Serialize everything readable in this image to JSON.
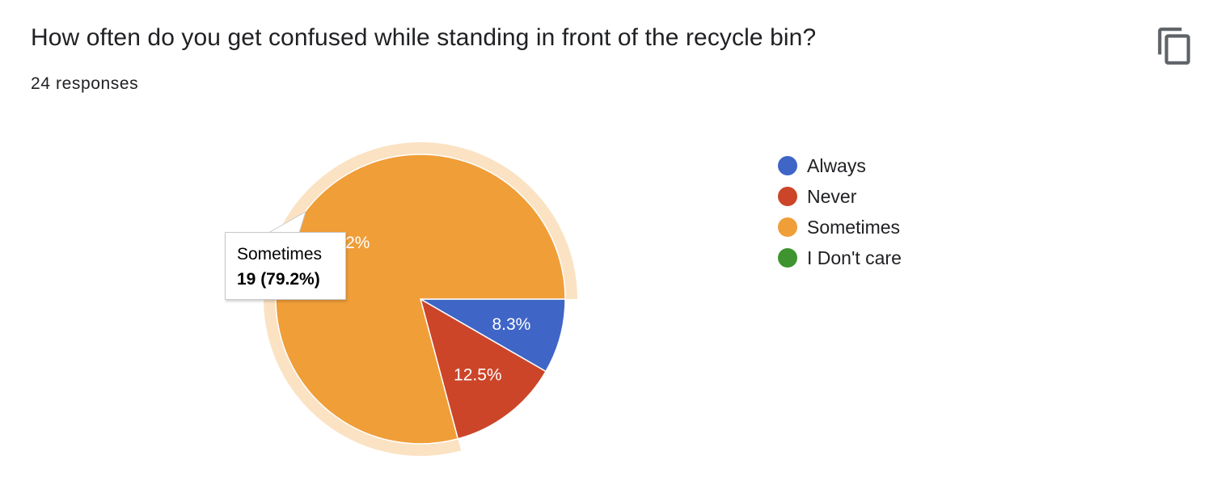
{
  "header": {
    "title": "How often do you get confused while standing in front of the recycle bin?",
    "responses_label": "24 responses",
    "copy_icon": "copy-icon"
  },
  "chart_data": {
    "type": "pie",
    "title": "How often do you get confused while standing in front of the recycle bin?",
    "total": 24,
    "slices": [
      {
        "label": "Always",
        "count": 2,
        "percent": 8.3,
        "percent_label": "8.3%",
        "color": "#3f65c6"
      },
      {
        "label": "Never",
        "count": 3,
        "percent": 12.5,
        "percent_label": "12.5%",
        "color": "#cc4529"
      },
      {
        "label": "Sometimes",
        "count": 19,
        "percent": 79.2,
        "percent_label": "79.2%",
        "color": "#f09e38"
      },
      {
        "label": "I Don't care",
        "count": 0,
        "percent": 0,
        "percent_label": "0%",
        "color": "#3e942f"
      }
    ],
    "legend_position": "right",
    "highlighted_slice": "Sometimes"
  },
  "tooltip": {
    "category": "Sometimes",
    "value": "19 (79.2%)"
  }
}
